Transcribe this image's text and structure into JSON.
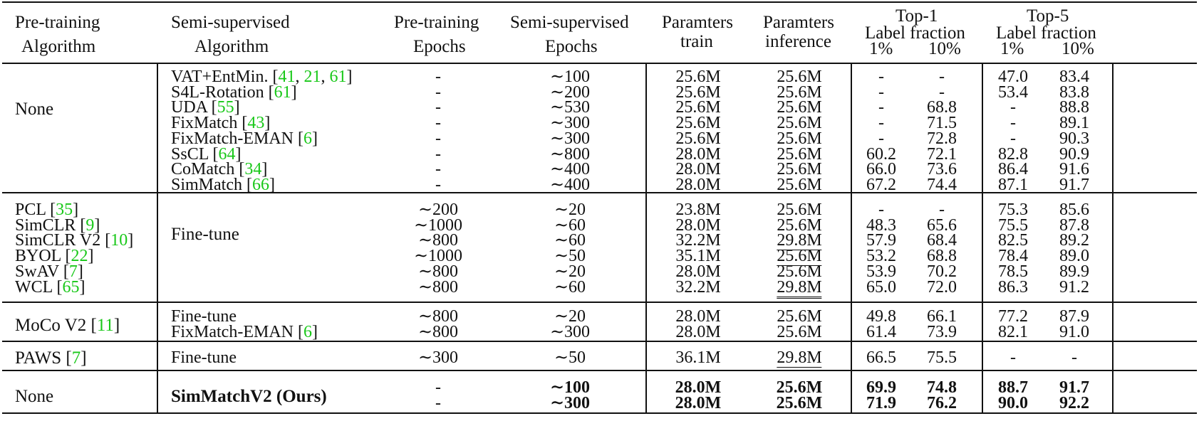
{
  "header": {
    "pretrain_algo": [
      "Pre-training",
      "Algorithm"
    ],
    "semi_algo": [
      "Semi-supervised",
      "Algorithm"
    ],
    "pretrain_epochs": [
      "Pre-training",
      "Epochs"
    ],
    "semi_epochs": [
      "Semi-supervised",
      "Epochs"
    ],
    "params_train": [
      "Paramters",
      "train"
    ],
    "params_inference": [
      "Paramters",
      "inference"
    ],
    "top1": "Top-1",
    "top5": "Top-5",
    "label_fraction": "Label fraction",
    "pct1": "1%",
    "pct10": "10%"
  },
  "groups": [
    {
      "pretrain_label": "None",
      "rows": [
        {
          "method": "VAT+EntMin. ",
          "refs": [
            "41",
            "21",
            "61"
          ],
          "pre": "-",
          "semi": "∼100",
          "train": "25.6M",
          "inf": "25.6M",
          "t1_1": "-",
          "t1_10": "-",
          "t5_1": "47.0",
          "t5_10": "83.4"
        },
        {
          "method": "S4L-Rotation ",
          "refs": [
            "61"
          ],
          "pre": "-",
          "semi": "∼200",
          "train": "25.6M",
          "inf": "25.6M",
          "t1_1": "-",
          "t1_10": "-",
          "t5_1": "53.4",
          "t5_10": "83.8"
        },
        {
          "method": "UDA  ",
          "refs": [
            "55"
          ],
          "pre": "-",
          "semi": "∼530",
          "train": "25.6M",
          "inf": "25.6M",
          "t1_1": "-",
          "t1_10": "68.8",
          "t5_1": "-",
          "t5_10": "88.8"
        },
        {
          "method": "FixMatch  ",
          "refs": [
            "43"
          ],
          "pre": "-",
          "semi": "∼300",
          "train": "25.6M",
          "inf": "25.6M",
          "t1_1": "-",
          "t1_10": "71.5",
          "t5_1": "-",
          "t5_10": "89.1"
        },
        {
          "method": "FixMatch-EMAN  ",
          "refs": [
            "6"
          ],
          "pre": "-",
          "semi": "∼300",
          "train": "25.6M",
          "inf": "25.6M",
          "t1_1": "-",
          "t1_10": "72.8",
          "t5_1": "-",
          "t5_10": "90.3"
        },
        {
          "method": "SsCL ",
          "refs": [
            "64"
          ],
          "pre": "-",
          "semi": "∼800",
          "train": "28.0M",
          "inf": "25.6M",
          "t1_1": "60.2",
          "t1_10": "72.1",
          "t5_1": "82.8",
          "t5_10": "90.9"
        },
        {
          "method": "CoMatch ",
          "refs": [
            "34"
          ],
          "pre": "-",
          "semi": "∼400",
          "train": "28.0M",
          "inf": "25.6M",
          "t1_1": "66.0",
          "t1_10": "73.6",
          "t5_1": "86.4",
          "t5_10": "91.6"
        },
        {
          "method": "SimMatch ",
          "refs": [
            "66"
          ],
          "pre": "-",
          "semi": "∼400",
          "train": "28.0M",
          "inf": "25.6M",
          "t1_1": "67.2",
          "t1_10": "74.4",
          "t5_1": "87.1",
          "t5_10": "91.7"
        }
      ]
    },
    {
      "semi_label": "Fine-tune",
      "rows": [
        {
          "pretrain": "PCL ",
          "refs": [
            "35"
          ],
          "pre": "∼200",
          "semi": "∼20",
          "train": "23.8M",
          "inf": "25.6M",
          "t1_1": "-",
          "t1_10": "-",
          "t5_1": "75.3",
          "t5_10": "85.6"
        },
        {
          "pretrain": "SimCLR ",
          "refs": [
            "9"
          ],
          "pre": "∼1000",
          "semi": "∼60",
          "train": "28.0M",
          "inf": "25.6M",
          "t1_1": "48.3",
          "t1_10": "65.6",
          "t5_1": "75.5",
          "t5_10": "87.8"
        },
        {
          "pretrain": "SimCLR V2 ",
          "refs": [
            "10"
          ],
          "pre": "∼800",
          "semi": "∼60",
          "train": "32.2M",
          "inf": "29.8M",
          "t1_1": "57.9",
          "t1_10": "68.4",
          "t5_1": "82.5",
          "t5_10": "89.2"
        },
        {
          "pretrain": "BYOL ",
          "refs": [
            "22"
          ],
          "pre": "∼1000",
          "semi": "∼50",
          "train": "35.1M",
          "inf": "25.6M",
          "t1_1": "53.2",
          "t1_10": "68.8",
          "t5_1": "78.4",
          "t5_10": "89.0"
        },
        {
          "pretrain": "SwAV ",
          "refs": [
            "7"
          ],
          "pre": "∼800",
          "semi": "∼20",
          "train": "28.0M",
          "inf": "25.6M",
          "t1_1": "53.9",
          "t1_10": "70.2",
          "t5_1": "78.5",
          "t5_10": "89.9"
        },
        {
          "pretrain": "WCL ",
          "refs": [
            "65"
          ],
          "pre": "∼800",
          "semi": "∼60",
          "train": "32.2M",
          "inf": "29.8M",
          "t1_1": "65.0",
          "t1_10": "72.0",
          "t5_1": "86.3",
          "t5_10": "91.2"
        }
      ]
    },
    {
      "pretrain_label": "MoCo V2  ",
      "pretrain_refs": [
        "11"
      ],
      "rows": [
        {
          "method": "Fine-tune",
          "refs": [],
          "pre": "∼800",
          "semi": "∼20",
          "train": "28.0M",
          "inf": "25.6M",
          "t1_1": "49.8",
          "t1_10": "66.1",
          "t5_1": "77.2",
          "t5_10": "87.9"
        },
        {
          "method": "FixMatch-EMAN ",
          "refs": [
            "6"
          ],
          "pre": "∼800",
          "semi": "∼300",
          "train": "28.0M",
          "inf": "25.6M",
          "t1_1": "61.4",
          "t1_10": "73.9",
          "t5_1": "82.1",
          "t5_10": "91.0"
        }
      ]
    },
    {
      "pretrain_label": "PAWS ",
      "pretrain_refs": [
        "7"
      ],
      "rows": [
        {
          "method": "Fine-tune",
          "pre": "∼300",
          "semi": "∼50",
          "train": "36.1M",
          "inf": "29.8M",
          "t1_1": "66.5",
          "t1_10": "75.5",
          "t5_1": "-",
          "t5_10": "-"
        }
      ]
    },
    {
      "pretrain_label": "None",
      "method": "SimMatchV2 (Ours)",
      "rows": [
        {
          "pre": "-",
          "semi": "∼100",
          "train": "28.0M",
          "inf": "25.6M",
          "t1_1": "69.9",
          "t1_10": "74.8",
          "t5_1": "88.7",
          "t5_10": "91.7"
        },
        {
          "pre": "-",
          "semi": "∼300",
          "train": "28.0M",
          "inf": "25.6M",
          "t1_1": "71.9",
          "t1_10": "76.2",
          "t5_1": "90.0",
          "t5_10": "92.2"
        }
      ]
    }
  ]
}
